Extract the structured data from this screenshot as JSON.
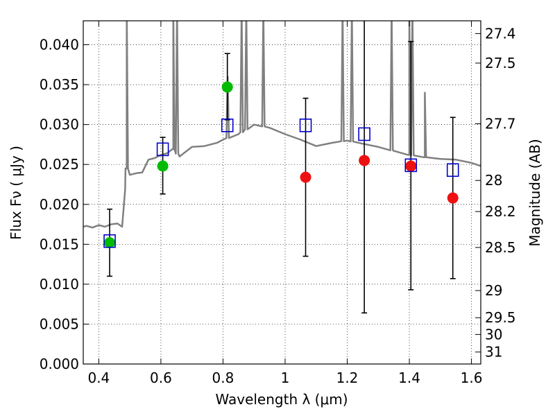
{
  "chart_data": {
    "type": "scatter",
    "xlabel": "Wavelength  λ (μm)",
    "ylabel": "Flux  Fν  ( μJy )",
    "y2label": "Magnitude (AB)",
    "xlim": [
      0.35,
      1.63
    ],
    "ylim": [
      0.0,
      0.043
    ],
    "grid": true,
    "x_ticks": [
      0.4,
      0.6,
      0.8,
      1.0,
      1.2,
      1.4,
      1.6
    ],
    "x_tick_labels": [
      "0.4",
      "0.6",
      "0.8",
      "1",
      "1.2",
      "1.4",
      "1.6"
    ],
    "y_ticks": [
      0.0,
      0.005,
      0.01,
      0.015,
      0.02,
      0.025,
      0.03,
      0.035,
      0.04
    ],
    "y_tick_labels": [
      "0.000",
      "0.005",
      "0.010",
      "0.015",
      "0.020",
      "0.025",
      "0.030",
      "0.035",
      "0.040"
    ],
    "y2_ticks": [
      {
        "label": "27.4",
        "flux": 0.0414
      },
      {
        "label": "27.5",
        "flux": 0.0377
      },
      {
        "label": "27.7",
        "flux": 0.0301
      },
      {
        "label": "28",
        "flux": 0.023
      },
      {
        "label": "28.2",
        "flux": 0.0191
      },
      {
        "label": "28.5",
        "flux": 0.0146
      },
      {
        "label": "29",
        "flux": 0.0092
      },
      {
        "label": "29.5",
        "flux": 0.0058
      },
      {
        "label": "30",
        "flux": 0.0037
      },
      {
        "label": "31",
        "flux": 0.0015
      }
    ],
    "series": [
      {
        "kind": "model-spectrum",
        "color": "#808080",
        "x": [
          0.35,
          0.36,
          0.38,
          0.4,
          0.42,
          0.44,
          0.46,
          0.475,
          0.48,
          0.485,
          0.49,
          0.5,
          0.52,
          0.54,
          0.56,
          0.58,
          0.6,
          0.62,
          0.64,
          0.66,
          0.7,
          0.74,
          0.78,
          0.8,
          0.85,
          0.9,
          0.95,
          1.0,
          1.05,
          1.1,
          1.15,
          1.2,
          1.25,
          1.3,
          1.35,
          1.4,
          1.45,
          1.5,
          1.55,
          1.6,
          1.63
        ],
        "y": [
          0.0172,
          0.0173,
          0.0171,
          0.0174,
          0.0172,
          0.0175,
          0.0176,
          0.0172,
          0.0195,
          0.0219,
          0.0245,
          0.0237,
          0.0239,
          0.024,
          0.0256,
          0.0258,
          0.0262,
          0.0264,
          0.0269,
          0.026,
          0.0272,
          0.0273,
          0.0277,
          0.0281,
          0.0288,
          0.03,
          0.0296,
          0.0288,
          0.0281,
          0.0273,
          0.0277,
          0.028,
          0.0276,
          0.0272,
          0.0267,
          0.0262,
          0.0259,
          0.0257,
          0.0256,
          0.0252,
          0.0248
        ]
      },
      {
        "kind": "model-photometry",
        "marker": "open-square",
        "color": "#0000cc",
        "x": [
          0.435,
          0.606,
          0.814,
          1.066,
          1.255,
          1.405,
          1.54
        ],
        "y": [
          0.0154,
          0.0269,
          0.0299,
          0.0299,
          0.0288,
          0.0249,
          0.0243
        ]
      },
      {
        "kind": "observed-optical",
        "marker": "filled-circle",
        "color": "#00bb00",
        "x": [
          0.435,
          0.606,
          0.814
        ],
        "y": [
          0.0152,
          0.0248,
          0.0347
        ],
        "err_low": [
          0.011,
          0.0213,
          0.0306
        ],
        "err_high": [
          0.0194,
          0.0284,
          0.0389
        ]
      },
      {
        "kind": "observed-nir",
        "marker": "filled-circle",
        "color": "#ee1111",
        "x": [
          1.066,
          1.255,
          1.405,
          1.54
        ],
        "y": [
          0.0234,
          0.0255,
          0.0248,
          0.0208
        ],
        "err_low": [
          0.0135,
          0.0064,
          0.0093,
          0.0107
        ],
        "err_high": [
          0.0333,
          0.0446,
          0.0404,
          0.0309
        ]
      }
    ],
    "emission_lines": [
      {
        "x": 0.49,
        "peak": 0.0446
      },
      {
        "x": 0.64,
        "peak": 0.0446
      },
      {
        "x": 0.652,
        "peak": 0.0446
      },
      {
        "x": 0.815,
        "peak": 0.036
      },
      {
        "x": 0.86,
        "peak": 0.0446
      },
      {
        "x": 0.875,
        "peak": 0.0446
      },
      {
        "x": 0.93,
        "peak": 0.0446
      },
      {
        "x": 1.185,
        "peak": 0.0446
      },
      {
        "x": 1.215,
        "peak": 0.0446
      },
      {
        "x": 1.343,
        "peak": 0.0446
      },
      {
        "x": 1.4,
        "peak": 0.0446
      },
      {
        "x": 1.41,
        "peak": 0.0446
      },
      {
        "x": 1.45,
        "peak": 0.034
      }
    ]
  }
}
